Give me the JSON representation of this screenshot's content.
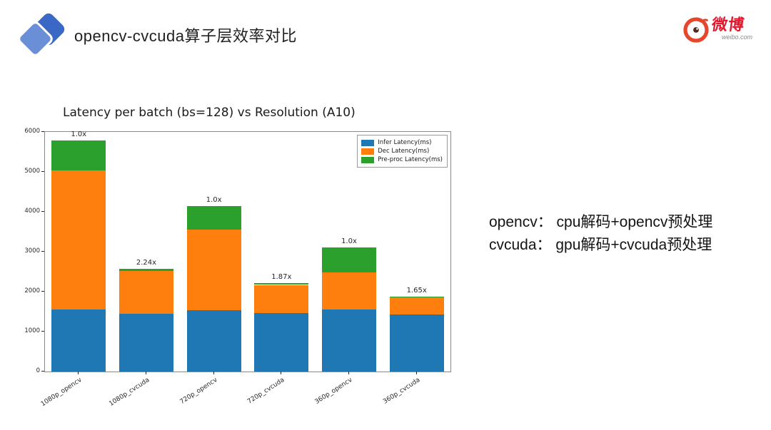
{
  "slide": {
    "title": "opencv-cvcuda算子层效率对比"
  },
  "logo": {
    "brand": "微博",
    "domain": "weibo.com"
  },
  "notes": {
    "line1": "opencv： cpu解码+opencv预处理",
    "line2": "cvcuda： gpu解码+cvcuda预处理"
  },
  "chart_data": {
    "type": "bar",
    "stacked": true,
    "title": "Latency per batch (bs=128) vs Resolution (A10)",
    "xlabel": "",
    "ylabel": "",
    "categories": [
      "1080p_opencv",
      "1080p_cvcuda",
      "720p_opencv",
      "720p_cvcuda",
      "360p_opencv",
      "360p_cvcuda"
    ],
    "series": [
      {
        "name": "Infer Latency(ms)",
        "color": "#1f77b4",
        "values": [
          1550,
          1450,
          1530,
          1470,
          1550,
          1430
        ]
      },
      {
        "name": "Dec Latency(ms)",
        "color": "#ff7f0e",
        "values": [
          3480,
          1060,
          2020,
          700,
          930,
          420
        ]
      },
      {
        "name": "Pre-proc Latency(ms)",
        "color": "#2ca02c",
        "values": [
          750,
          70,
          600,
          50,
          620,
          30
        ]
      }
    ],
    "bar_labels": [
      "1.0x",
      "2.24x",
      "1.0x",
      "1.87x",
      "1.0x",
      "1.65x"
    ],
    "ylim": [
      0,
      6000
    ],
    "yticks": [
      0,
      1000,
      2000,
      3000,
      4000,
      5000,
      6000
    ],
    "legend_position": "upper right",
    "grid": false
  }
}
